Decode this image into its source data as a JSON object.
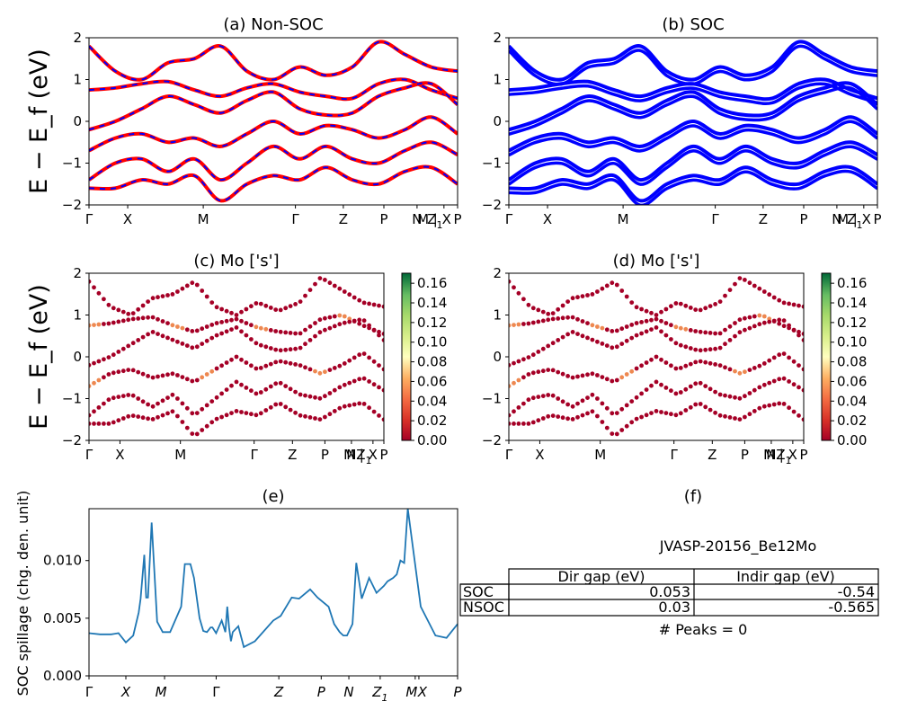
{
  "panels": {
    "a": {
      "title": "(a) Non-SOC"
    },
    "b": {
      "title": "(b) SOC"
    },
    "c": {
      "title": "(c)  Mo ['s']"
    },
    "d": {
      "title": "(d) Mo ['s']"
    },
    "e": {
      "title": "(e)"
    },
    "f": {
      "title": "(f)"
    }
  },
  "band_ylabel": "E − E_f (eV)",
  "kpath_top": [
    "Γ",
    "X",
    "M",
    "Γ",
    "Z",
    "P",
    "N",
    "Z1",
    "M | X",
    "P"
  ],
  "kpath_mid": [
    "Γ",
    "X",
    "M",
    "Γ",
    "Z",
    "P",
    "N",
    "Z1",
    "M | X",
    "P"
  ],
  "kpath_bottom": [
    "Γ",
    "X",
    "M",
    "Γ",
    "Z",
    "P",
    "N",
    "Z1",
    "M",
    "X",
    "P"
  ],
  "colorbar": {
    "ticks": [
      "0.00",
      "0.02",
      "0.04",
      "0.06",
      "0.08",
      "0.10",
      "0.12",
      "0.14",
      "0.16"
    ],
    "colormap": "RdYlGn"
  },
  "spillage_ylabel": "SOC spillage (chg. den. unit)",
  "table": {
    "material": "JVASP-20156_Be12Mo",
    "columns": [
      "Dir gap (eV)",
      "Indir gap (eV)"
    ],
    "rows": [
      {
        "label": "SOC",
        "dir": "0.053",
        "indir": "-0.54"
      },
      {
        "label": "NSOC",
        "dir": "0.03",
        "indir": "-0.565"
      }
    ],
    "peaks": "# Peaks = 0"
  },
  "colors": {
    "nonsoc_line": "#ff0000",
    "nonsoc_dash": "#0000ff",
    "soc_line": "#0000ff",
    "spillage_line": "#1f77b4"
  },
  "chart_data": [
    {
      "type": "line",
      "title": "(a) Non-SOC",
      "ylabel": "E − E_f (eV)",
      "ylim": [
        -2,
        2
      ],
      "yticks": [
        -2,
        -1,
        0,
        1,
        2
      ],
      "x_ticks": [
        "Γ",
        "X",
        "M",
        "Γ",
        "Z",
        "P",
        "N",
        "Z1",
        "M | X",
        "P"
      ],
      "series": [
        {
          "values": [
            0.75,
            0.8,
            0.9,
            0.95,
            0.75,
            0.6,
            0.8,
            0.9,
            0.7,
            0.6,
            0.55,
            0.9,
            1.0,
            0.75,
            0.55
          ]
        },
        {
          "values": [
            -0.2,
            0.0,
            0.3,
            0.6,
            0.4,
            0.2,
            0.5,
            0.7,
            0.3,
            0.15,
            0.2,
            0.6,
            0.8,
            0.9,
            0.4
          ]
        },
        {
          "values": [
            -0.7,
            -0.4,
            -0.3,
            -0.5,
            -0.4,
            -0.6,
            -0.3,
            0.0,
            -0.3,
            -0.1,
            -0.2,
            -0.4,
            -0.2,
            0.1,
            -0.3
          ]
        },
        {
          "values": [
            -1.4,
            -1.0,
            -0.9,
            -1.2,
            -0.9,
            -1.4,
            -1.0,
            -0.6,
            -0.9,
            -0.6,
            -0.9,
            -1.0,
            -0.7,
            -0.5,
            -0.8
          ]
        },
        {
          "values": [
            -1.6,
            -1.6,
            -1.4,
            -1.5,
            -1.3,
            -1.9,
            -1.5,
            -1.3,
            -1.4,
            -1.1,
            -1.4,
            -1.5,
            -1.2,
            -1.1,
            -1.5
          ]
        },
        {
          "values": [
            1.8,
            1.2,
            1.0,
            1.4,
            1.5,
            1.8,
            1.2,
            1.0,
            1.3,
            1.1,
            1.3,
            1.9,
            1.6,
            1.3,
            1.2
          ]
        }
      ]
    },
    {
      "type": "line",
      "title": "(b) SOC",
      "ylim": [
        -2,
        2
      ],
      "yticks": [
        -2,
        -1,
        0,
        1,
        2
      ],
      "x_ticks": [
        "Γ",
        "X",
        "M",
        "Γ",
        "Z",
        "P",
        "N",
        "Z1",
        "M | X",
        "P"
      ],
      "series": [
        {
          "values": [
            0.75,
            0.8,
            0.9,
            0.95,
            0.75,
            0.6,
            0.8,
            0.9,
            0.7,
            0.6,
            0.55,
            0.9,
            1.0,
            0.75,
            0.55
          ]
        },
        {
          "values": [
            -0.2,
            0.0,
            0.3,
            0.6,
            0.4,
            0.2,
            0.5,
            0.7,
            0.3,
            0.15,
            0.2,
            0.6,
            0.8,
            0.9,
            0.4
          ]
        },
        {
          "values": [
            -0.7,
            -0.4,
            -0.3,
            -0.5,
            -0.4,
            -0.6,
            -0.3,
            0.0,
            -0.3,
            -0.1,
            -0.2,
            -0.4,
            -0.2,
            0.1,
            -0.3
          ]
        },
        {
          "values": [
            -1.4,
            -1.0,
            -0.9,
            -1.2,
            -0.9,
            -1.4,
            -1.0,
            -0.6,
            -0.9,
            -0.6,
            -0.9,
            -1.0,
            -0.7,
            -0.5,
            -0.8
          ]
        },
        {
          "values": [
            -1.6,
            -1.6,
            -1.4,
            -1.5,
            -1.3,
            -1.9,
            -1.5,
            -1.3,
            -1.4,
            -1.1,
            -1.4,
            -1.5,
            -1.2,
            -1.1,
            -1.5
          ]
        },
        {
          "values": [
            1.8,
            1.2,
            1.0,
            1.4,
            1.5,
            1.8,
            1.2,
            1.0,
            1.3,
            1.1,
            1.3,
            1.9,
            1.6,
            1.3,
            1.2
          ]
        }
      ]
    },
    {
      "type": "scatter",
      "title": "(c)  Mo ['s']",
      "ylabel": "E − E_f (eV)",
      "ylim": [
        -2,
        2
      ],
      "yticks": [
        -2,
        -1,
        0,
        1,
        2
      ],
      "clim": [
        0,
        0.17
      ],
      "x_ticks": [
        "Γ",
        "X",
        "M",
        "Γ",
        "Z",
        "P",
        "N",
        "Z1",
        "M | X",
        "P"
      ],
      "series": [
        {
          "values": [
            0.75,
            0.8,
            0.9,
            0.95,
            0.75,
            0.6,
            0.8,
            0.9,
            0.7,
            0.6,
            0.55,
            0.9,
            1.0,
            0.75,
            0.55
          ]
        },
        {
          "values": [
            -0.2,
            0.0,
            0.3,
            0.6,
            0.4,
            0.2,
            0.5,
            0.7,
            0.3,
            0.15,
            0.2,
            0.6,
            0.8,
            0.9,
            0.4
          ]
        },
        {
          "values": [
            -0.7,
            -0.4,
            -0.3,
            -0.5,
            -0.4,
            -0.6,
            -0.3,
            0.0,
            -0.3,
            -0.1,
            -0.2,
            -0.4,
            -0.2,
            0.1,
            -0.3
          ]
        },
        {
          "values": [
            -1.4,
            -1.0,
            -0.9,
            -1.2,
            -0.9,
            -1.4,
            -1.0,
            -0.6,
            -0.9,
            -0.6,
            -0.9,
            -1.0,
            -0.7,
            -0.5,
            -0.8
          ]
        },
        {
          "values": [
            -1.6,
            -1.6,
            -1.4,
            -1.5,
            -1.3,
            -1.9,
            -1.5,
            -1.3,
            -1.4,
            -1.1,
            -1.4,
            -1.5,
            -1.2,
            -1.1,
            -1.5
          ]
        },
        {
          "values": [
            1.8,
            1.2,
            1.0,
            1.4,
            1.5,
            1.8,
            1.2,
            1.0,
            1.3,
            1.1,
            1.3,
            1.9,
            1.6,
            1.3,
            1.2
          ]
        }
      ]
    },
    {
      "type": "scatter",
      "title": "(d) Mo ['s']",
      "ylim": [
        -2,
        2
      ],
      "yticks": [
        -2,
        -1,
        0,
        1,
        2
      ],
      "clim": [
        0,
        0.17
      ],
      "x_ticks": [
        "Γ",
        "X",
        "M",
        "Γ",
        "Z",
        "P",
        "N",
        "Z1",
        "M | X",
        "P"
      ],
      "series": [
        {
          "values": [
            0.75,
            0.8,
            0.9,
            0.95,
            0.75,
            0.6,
            0.8,
            0.9,
            0.7,
            0.6,
            0.55,
            0.9,
            1.0,
            0.75,
            0.55
          ]
        },
        {
          "values": [
            -0.2,
            0.0,
            0.3,
            0.6,
            0.4,
            0.2,
            0.5,
            0.7,
            0.3,
            0.15,
            0.2,
            0.6,
            0.8,
            0.9,
            0.4
          ]
        },
        {
          "values": [
            -0.7,
            -0.4,
            -0.3,
            -0.5,
            -0.4,
            -0.6,
            -0.3,
            0.0,
            -0.3,
            -0.1,
            -0.2,
            -0.4,
            -0.2,
            0.1,
            -0.3
          ]
        },
        {
          "values": [
            -1.4,
            -1.0,
            -0.9,
            -1.2,
            -0.9,
            -1.4,
            -1.0,
            -0.6,
            -0.9,
            -0.6,
            -0.9,
            -1.0,
            -0.7,
            -0.5,
            -0.8
          ]
        },
        {
          "values": [
            -1.6,
            -1.6,
            -1.4,
            -1.5,
            -1.3,
            -1.9,
            -1.5,
            -1.3,
            -1.4,
            -1.1,
            -1.4,
            -1.5,
            -1.2,
            -1.1,
            -1.5
          ]
        },
        {
          "values": [
            1.8,
            1.2,
            1.0,
            1.4,
            1.5,
            1.8,
            1.2,
            1.0,
            1.3,
            1.1,
            1.3,
            1.9,
            1.6,
            1.3,
            1.2
          ]
        }
      ]
    },
    {
      "type": "line",
      "title": "(e)",
      "ylabel": "SOC spillage (chg. den. unit)",
      "ylim": [
        0,
        0.0145
      ],
      "yticks": [
        "0.000",
        "0.005",
        "0.010"
      ],
      "x_ticks": [
        "Γ",
        "X",
        "M",
        "Γ",
        "Z",
        "P",
        "N",
        "Z1",
        "M",
        "X",
        "P"
      ],
      "x": [
        0,
        0.03,
        0.06,
        0.08,
        0.1,
        0.12,
        0.135,
        0.14,
        0.15,
        0.155,
        0.16,
        0.17,
        0.185,
        0.2,
        0.22,
        0.25,
        0.26,
        0.275,
        0.285,
        0.3,
        0.31,
        0.32,
        0.33,
        0.335,
        0.345,
        0.36,
        0.37,
        0.375,
        0.38,
        0.385,
        0.39,
        0.405,
        0.42,
        0.45,
        0.5,
        0.52,
        0.55,
        0.57,
        0.6,
        0.62,
        0.65,
        0.665,
        0.68,
        0.69,
        0.7,
        0.715,
        0.725,
        0.74,
        0.76,
        0.78,
        0.8,
        0.81,
        0.825,
        0.835,
        0.845,
        0.855,
        0.865,
        0.9,
        0.94,
        0.97,
        1.0
      ],
      "y": [
        0.0037,
        0.0036,
        0.0036,
        0.0037,
        0.0029,
        0.0035,
        0.0055,
        0.0067,
        0.0105,
        0.0068,
        0.0068,
        0.0133,
        0.0047,
        0.0038,
        0.0038,
        0.006,
        0.0097,
        0.0097,
        0.0085,
        0.005,
        0.0039,
        0.0038,
        0.0042,
        0.0042,
        0.0037,
        0.0048,
        0.0038,
        0.006,
        0.0042,
        0.003,
        0.0038,
        0.0043,
        0.0025,
        0.003,
        0.0048,
        0.0052,
        0.0068,
        0.0067,
        0.0075,
        0.0068,
        0.006,
        0.0045,
        0.0038,
        0.0035,
        0.0035,
        0.0045,
        0.0098,
        0.0067,
        0.0085,
        0.0072,
        0.0078,
        0.0082,
        0.0085,
        0.0088,
        0.01,
        0.0098,
        0.0145,
        0.006,
        0.0035,
        0.0033,
        0.0045
      ]
    }
  ]
}
